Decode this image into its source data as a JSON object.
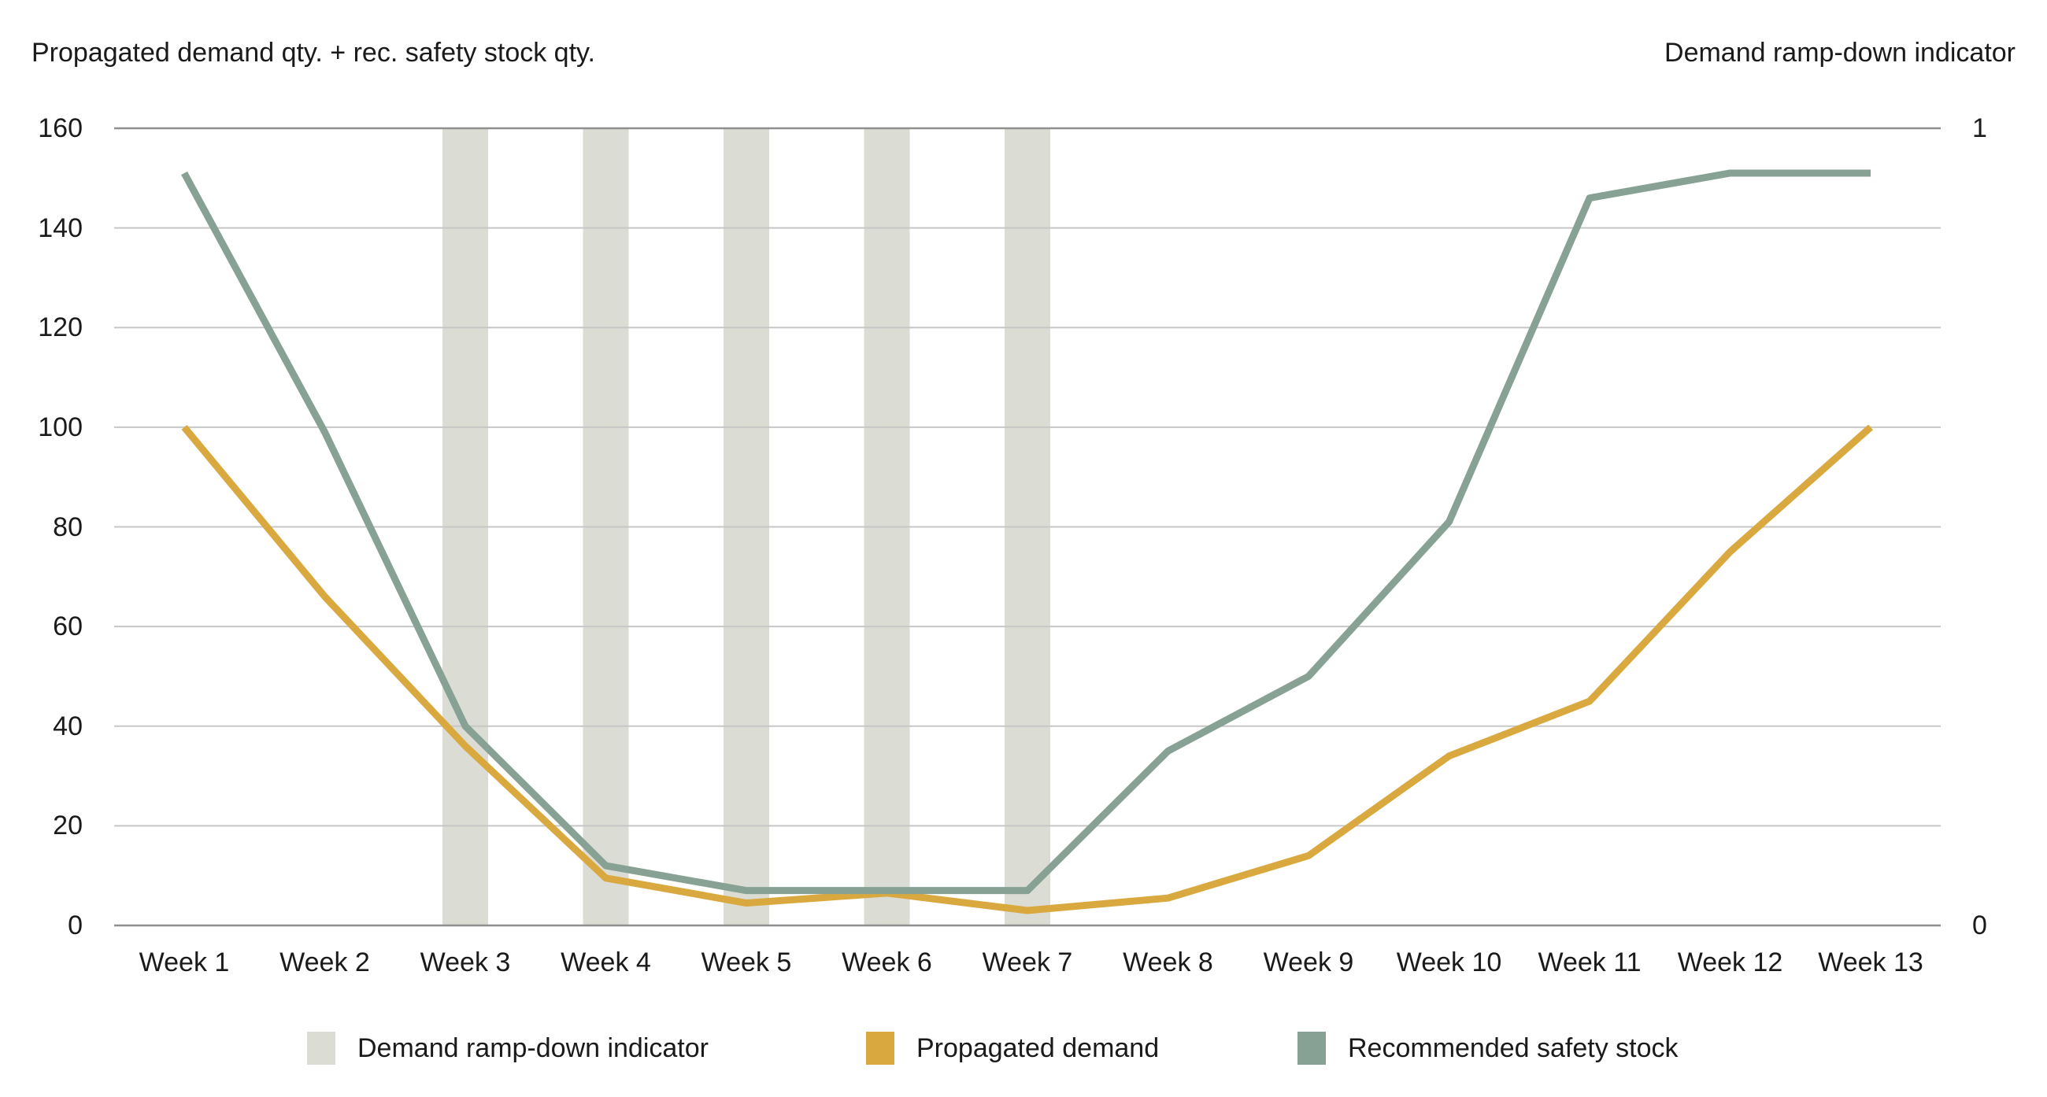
{
  "header": {
    "left_axis_title": "Propagated demand qty. + rec. safety stock qty.",
    "right_axis_title": "Demand ramp-down indicator"
  },
  "chart_data": {
    "type": "line",
    "title": "",
    "categories": [
      "Week 1",
      "Week 2",
      "Week 3",
      "Week 4",
      "Week 5",
      "Week 6",
      "Week 7",
      "Week 8",
      "Week 9",
      "Week 10",
      "Week 11",
      "Week 12",
      "Week 13"
    ],
    "series": [
      {
        "name": "Demand ramp-down indicator",
        "render": "bar",
        "axis": "right",
        "color": "#DBDCD3",
        "values": [
          0,
          0,
          1,
          1,
          1,
          1,
          1,
          0,
          0,
          0,
          0,
          0,
          0
        ]
      },
      {
        "name": "Propagated demand",
        "render": "line",
        "axis": "left",
        "color": "#D9A940",
        "values": [
          100,
          66,
          36,
          9.5,
          4.5,
          6.5,
          3,
          5.5,
          14,
          34,
          45,
          75,
          100
        ]
      },
      {
        "name": "Recommended safety stock",
        "render": "line",
        "axis": "left",
        "color": "#87A294",
        "values": [
          151,
          99,
          40,
          12,
          7,
          7,
          7,
          35,
          50,
          81,
          146,
          151,
          151
        ]
      }
    ],
    "left_axis": {
      "title": "Propagated demand qty. + rec. safety stock qty.",
      "min": 0,
      "max": 160,
      "ticks": [
        0,
        20,
        40,
        60,
        80,
        100,
        120,
        140,
        160
      ]
    },
    "right_axis": {
      "title": "Demand ramp-down indicator",
      "min": 0,
      "max": 1,
      "ticks": [
        0,
        1
      ]
    },
    "grid": true,
    "grid_color": "#C7C7C7",
    "grid_edge_color": "#8F8F8F",
    "legend_position": "bottom"
  }
}
